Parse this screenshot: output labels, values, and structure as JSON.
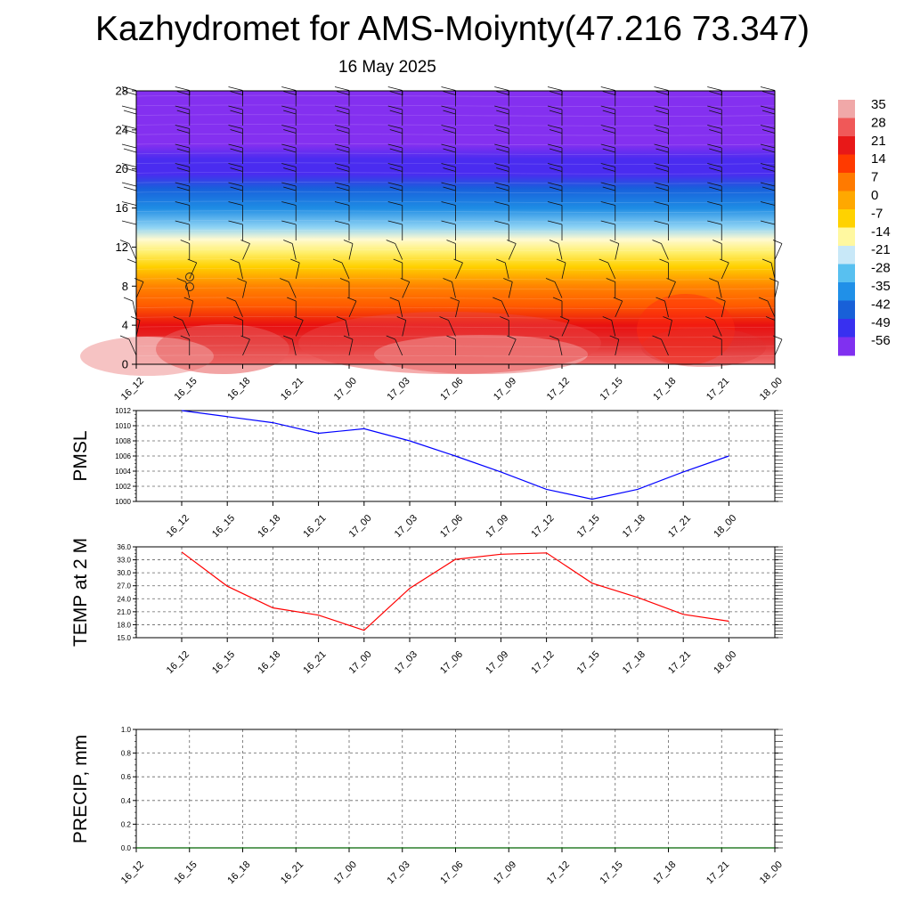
{
  "title": "Kazhydromet for AMS-Moiynty(47.216 73.347)",
  "subtitle": "16 May 2025",
  "chart_data": [
    {
      "type": "heatmap",
      "name": "temperature-wind-cross-section",
      "x_ticks": [
        "16_12",
        "16_15",
        "16_18",
        "16_21",
        "17_00",
        "17_03",
        "17_06",
        "17_09",
        "17_12",
        "17_15",
        "17_18",
        "17_21",
        "18_00"
      ],
      "y_ticks": [
        "0",
        "4",
        "8",
        "12",
        "16",
        "20",
        "24",
        "28"
      ],
      "ylim": [
        0,
        28
      ],
      "colorbar": {
        "labels": [
          "35",
          "28",
          "21",
          "14",
          "7",
          "0",
          "-7",
          "-14",
          "-21",
          "-28",
          "-35",
          "-42",
          "-49",
          "-56"
        ],
        "colors": [
          "#f0a8a8",
          "#f05858",
          "#e81818",
          "#ff3a00",
          "#ff7a00",
          "#ffa800",
          "#ffd200",
          "#fff8a0",
          "#c8e8f8",
          "#58c0f0",
          "#2090e8",
          "#1860d8",
          "#3830f0",
          "#8030f0"
        ]
      },
      "levels": [
        {
          "y": 0,
          "temp": 30
        },
        {
          "y": 2,
          "temp": 26
        },
        {
          "y": 4,
          "temp": 21
        },
        {
          "y": 6,
          "temp": 14
        },
        {
          "y": 8,
          "temp": 7
        },
        {
          "y": 10,
          "temp": 1
        },
        {
          "y": 11.5,
          "temp": -5
        },
        {
          "y": 12.8,
          "temp": -12
        },
        {
          "y": 14,
          "temp": -21
        },
        {
          "y": 16,
          "temp": -32
        },
        {
          "y": 18,
          "temp": -42
        },
        {
          "y": 19.5,
          "temp": -50
        },
        {
          "y": 21,
          "temp": -53
        },
        {
          "y": 22.5,
          "temp": -56
        },
        {
          "y": 28,
          "temp": -58
        }
      ],
      "wind_barbs": true
    },
    {
      "type": "line",
      "name": "pmsl",
      "ylabel": "PMSL",
      "x_ticks": [
        "16_12",
        "16_15",
        "16_18",
        "16_21",
        "17_00",
        "17_03",
        "17_06",
        "17_09",
        "17_12",
        "17_15",
        "17_18",
        "17_21",
        "18_00"
      ],
      "y_ticks": [
        "1000",
        "1002",
        "1004",
        "1006",
        "1008",
        "1010",
        "1012"
      ],
      "ylim": [
        1000,
        1012
      ],
      "series": [
        {
          "color": "#0000ff",
          "values": [
            1012.0,
            1011.2,
            1010.4,
            1009.0,
            1009.6,
            1008.0,
            1006.0,
            1003.9,
            1001.6,
            1000.3,
            1001.6,
            1003.9,
            1006.0
          ]
        }
      ]
    },
    {
      "type": "line",
      "name": "temp-2m",
      "ylabel": "TEMP at 2 M",
      "x_ticks": [
        "16_12",
        "16_15",
        "16_18",
        "16_21",
        "17_00",
        "17_03",
        "17_06",
        "17_09",
        "17_12",
        "17_15",
        "17_18",
        "17_21",
        "18_00"
      ],
      "y_ticks": [
        "15.0",
        "18.0",
        "21.0",
        "24.0",
        "27.0",
        "30.0",
        "33.0",
        "36.0"
      ],
      "ylim": [
        15,
        36
      ],
      "series": [
        {
          "color": "#ff0000",
          "values": [
            34.8,
            26.9,
            21.9,
            20.2,
            16.7,
            26.4,
            33.1,
            34.3,
            34.6,
            27.6,
            24.3,
            20.4,
            18.8
          ]
        }
      ]
    },
    {
      "type": "line",
      "name": "precip",
      "ylabel": "PRECIP, mm",
      "x_ticks": [
        "16_12",
        "16_15",
        "16_18",
        "16_21",
        "17_00",
        "17_03",
        "17_06",
        "17_09",
        "17_12",
        "17_15",
        "17_18",
        "17_21",
        "18_00"
      ],
      "y_ticks": [
        "0.0",
        "0.2",
        "0.4",
        "0.6",
        "0.8",
        "1.0"
      ],
      "ylim": [
        0,
        1
      ],
      "series": [
        {
          "color": "#006400",
          "values": [
            0,
            0,
            0,
            0,
            0,
            0,
            0,
            0,
            0,
            0,
            0,
            0,
            0
          ]
        }
      ]
    }
  ]
}
